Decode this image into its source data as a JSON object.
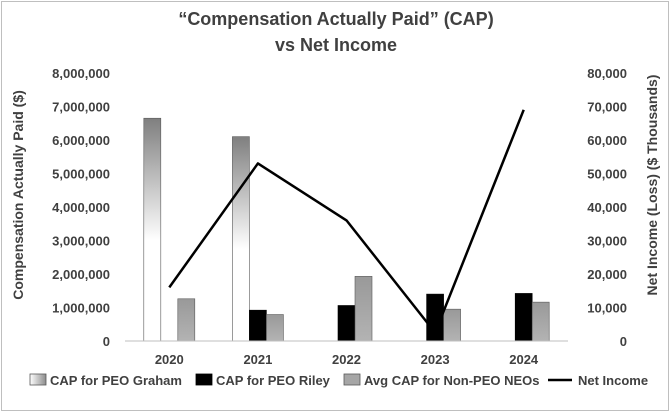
{
  "chart_data": {
    "type": "bar",
    "title": "“Compensation Actually Paid” (CAP)",
    "subtitle": "vs Net Income",
    "categories": [
      "2020",
      "2021",
      "2022",
      "2023",
      "2024"
    ],
    "y_left": {
      "label": "Compensation Actually Paid ($)",
      "ylim": [
        0,
        8000000
      ],
      "ticks": [
        "0",
        "1,000,000",
        "2,000,000",
        "3,000,000",
        "4,000,000",
        "5,000,000",
        "6,000,000",
        "7,000,000",
        "8,000,000"
      ]
    },
    "y_right": {
      "label": "Net Income (Loss) ($ Thousands)",
      "ylim": [
        0,
        80000
      ],
      "ticks": [
        "0",
        "10,000",
        "20,000",
        "30,000",
        "40,000",
        "50,000",
        "60,000",
        "70,000",
        "80,000"
      ]
    },
    "series": [
      {
        "name": "CAP for PEO Graham",
        "type": "bar",
        "axis": "left",
        "style": "gradient",
        "values": [
          6650000,
          6100000,
          null,
          null,
          null
        ]
      },
      {
        "name": "CAP for PEO Riley",
        "type": "bar",
        "axis": "left",
        "color": "#000000",
        "values": [
          null,
          920000,
          1060000,
          1400000,
          1420000
        ]
      },
      {
        "name": "Avg CAP for Non-PEO NEOs",
        "type": "bar",
        "axis": "left",
        "color": "#a6a6a6",
        "values": [
          1260000,
          790000,
          1930000,
          950000,
          1160000
        ]
      },
      {
        "name": "Net Income",
        "type": "line",
        "axis": "right",
        "color": "#000000",
        "values": [
          16000,
          53000,
          36000,
          2500,
          69000
        ]
      }
    ],
    "legend": "bottom",
    "grid": false
  }
}
